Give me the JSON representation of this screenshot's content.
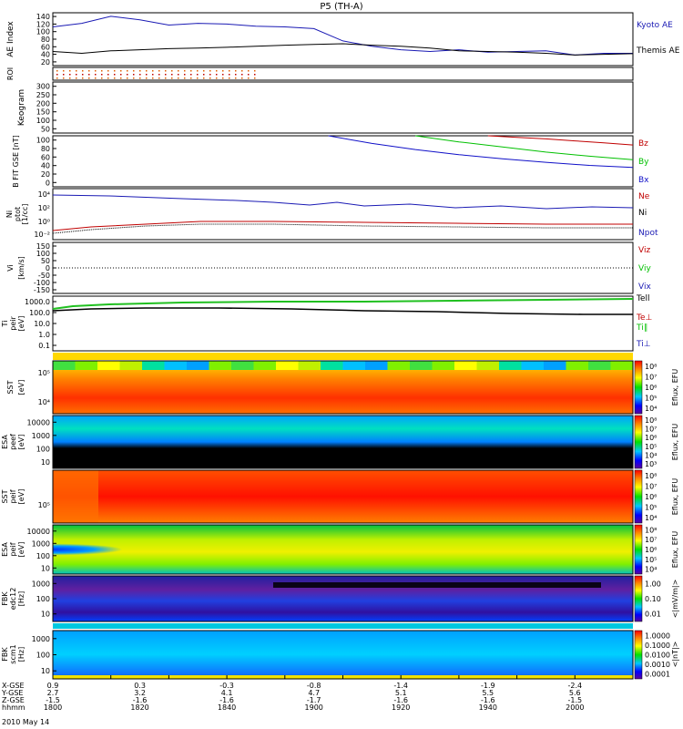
{
  "figure": {
    "title": "P5 (TH-A)",
    "date_label": "2010 May 14"
  },
  "chart_data": [
    {
      "type": "line",
      "panel": "ae",
      "ylabel": "AE Index",
      "ylim": [
        0,
        150
      ],
      "yticks": [
        "20",
        "40",
        "60",
        "80",
        "100",
        "120",
        "140"
      ],
      "xlim": [
        1800,
        2000
      ],
      "x": [
        1800,
        1810,
        1820,
        1830,
        1840,
        1850,
        1860,
        1870,
        1880,
        1890,
        1900,
        1910,
        1920,
        1930,
        1940,
        1950,
        1960,
        1970,
        1980,
        1990,
        2000
      ],
      "series": [
        {
          "name": "Kyoto AE",
          "color": "#1a1ab4",
          "values": [
            110,
            120,
            140,
            130,
            115,
            120,
            118,
            112,
            110,
            105,
            70,
            55,
            45,
            40,
            45,
            38,
            40,
            42,
            30,
            35,
            35
          ]
        },
        {
          "name": "Themis AE",
          "color": "#000000",
          "values": [
            40,
            35,
            42,
            45,
            48,
            50,
            52,
            55,
            58,
            60,
            62,
            58,
            55,
            50,
            42,
            40,
            38,
            35,
            30,
            32,
            34
          ]
        }
      ]
    },
    {
      "type": "scatter",
      "panel": "roi",
      "ylabel": "ROI",
      "note_rows": 3
    },
    {
      "type": "line",
      "panel": "keogram",
      "ylabel": "Keogram",
      "ylim": [
        0,
        300
      ],
      "yticks": [
        "50",
        "100",
        "150",
        "200",
        "250",
        "300"
      ]
    },
    {
      "type": "line",
      "panel": "bfit",
      "ylabel": "B FIT GSE [nT]",
      "ylim": [
        0,
        100
      ],
      "yticks": [
        "0",
        "20",
        "40",
        "60",
        "80",
        "100"
      ],
      "series": [
        {
          "name": "Bz",
          "color": "#c00000",
          "x": [
            1950,
            1960,
            1970,
            1980,
            1990,
            2000
          ],
          "values": [
            100,
            97,
            94,
            90,
            86,
            82
          ]
        },
        {
          "name": "By",
          "color": "#00c000",
          "x": [
            1925,
            1940,
            1955,
            1970,
            1985,
            2000
          ],
          "values": [
            100,
            88,
            78,
            68,
            60,
            53
          ]
        },
        {
          "name": "Bx",
          "color": "#1010c8",
          "x": [
            1895,
            1910,
            1925,
            1940,
            1955,
            1970,
            1985,
            2000
          ],
          "values": [
            100,
            85,
            73,
            63,
            55,
            48,
            42,
            38
          ]
        }
      ]
    },
    {
      "type": "line",
      "panel": "density",
      "ylabel": "Ni",
      "ylabel2": "[1/cc]",
      "ylabel_sub": "ptot",
      "yticks": [
        "10²",
        "10⁰",
        "10⁻²",
        "10⁴"
      ],
      "series_labels": [
        {
          "name": "Ne",
          "color": "#c00000"
        },
        {
          "name": "Ni",
          "color": "#000000"
        },
        {
          "name": "Npot",
          "color": "#1a1ab4"
        }
      ]
    },
    {
      "type": "line",
      "panel": "velocity",
      "ylabel": "Vi",
      "ylabel2": "[km/s]",
      "yticks": [
        "150",
        "100",
        "50",
        "0",
        "-50",
        "-100",
        "-150"
      ],
      "series_labels": [
        {
          "name": "Viz",
          "color": "#c00000"
        },
        {
          "name": "Viy",
          "color": "#00c000"
        },
        {
          "name": "Vix",
          "color": "#1a1ab4"
        }
      ]
    },
    {
      "type": "line",
      "panel": "temperature",
      "ylabel": "Ti",
      "ylabel2": "[eV]",
      "ylabel_sub": "peir",
      "yticks": [
        "1000.0",
        "100.0",
        "10.0",
        "1.0",
        "0.1"
      ],
      "series_labels": [
        {
          "name": "Tell",
          "color": "#000000"
        },
        {
          "name": "Te⊥",
          "color": "#c00000"
        },
        {
          "name": "Ti∥",
          "color": "#00c000"
        },
        {
          "name": "Ti⊥",
          "color": "#1a1ab4"
        }
      ]
    },
    {
      "type": "heatmap",
      "panel": "sst_e",
      "ylabel": "SST",
      "ylabel2": "[eV]",
      "ylabel_sub": "peef",
      "yticks": [
        "10⁵",
        "10⁴"
      ],
      "colorbar_ticks": [
        "10⁸",
        "10⁷",
        "10⁶",
        "10⁵",
        "10⁴"
      ],
      "colorbar_label": "Eflux, EFU"
    },
    {
      "type": "heatmap",
      "panel": "esa_e",
      "ylabel": "ESA",
      "ylabel2": "[eV]",
      "ylabel_sub": "peef",
      "yticks": [
        "10000",
        "1000",
        "100",
        "10"
      ],
      "colorbar_ticks": [
        "10⁸",
        "10⁷",
        "10⁶",
        "10⁵",
        "10⁴",
        "10³"
      ],
      "colorbar_label": "Eflux, EFU"
    },
    {
      "type": "heatmap",
      "panel": "sst_i",
      "ylabel": "SST",
      "ylabel2": "[eV]",
      "ylabel_sub": "peif",
      "yticks": [
        "10⁵"
      ],
      "colorbar_ticks": [
        "10⁸",
        "10⁷",
        "10⁶",
        "10⁵",
        "10⁴"
      ],
      "colorbar_label": "Eflux, EFU"
    },
    {
      "type": "heatmap",
      "panel": "esa_i",
      "ylabel": "ESA",
      "ylabel2": "[eV]",
      "ylabel_sub": "peif",
      "yticks": [
        "10000",
        "1000",
        "100",
        "10"
      ],
      "colorbar_ticks": [
        "10⁸",
        "10⁷",
        "10⁶",
        "10⁵",
        "10⁴"
      ],
      "colorbar_label": "Eflux, EFU"
    },
    {
      "type": "heatmap",
      "panel": "fbk_e",
      "ylabel": "FBK",
      "ylabel2": "[Hz]",
      "ylabel_sub": "edc12",
      "yticks": [
        "1000",
        "100",
        "10"
      ],
      "colorbar_ticks": [
        "1.00",
        "0.10",
        "0.01"
      ],
      "colorbar_label": "<|mV/m|>"
    },
    {
      "type": "heatmap",
      "panel": "fbk_b",
      "ylabel": "FBK",
      "ylabel2": "[Hz]",
      "ylabel_sub": "scm1",
      "yticks": [
        "1000",
        "100",
        "10"
      ],
      "colorbar_ticks": [
        "1.0000",
        "0.1000",
        "0.0100",
        "0.0010",
        "0.0001"
      ],
      "colorbar_label": "<|nT|>"
    }
  ],
  "x_axis": {
    "rows": [
      {
        "label": "X-GSE",
        "values": [
          "0.9",
          "0.3",
          "-0.3",
          "-0.8",
          "-1.4",
          "-1.9",
          "-2.4"
        ]
      },
      {
        "label": "Y-GSE",
        "values": [
          "2.7",
          "3.2",
          "4.1",
          "4.7",
          "5.1",
          "5.5",
          "5.6"
        ]
      },
      {
        "label": "Z-GSE",
        "values": [
          "-1.5",
          "-1.6",
          "-1.6",
          "-1.7",
          "-1.6",
          "-1.6",
          "-1.5"
        ]
      },
      {
        "label": "hhmm",
        "values": [
          "1800",
          "1820",
          "1840",
          "1900",
          "1920",
          "1940",
          "2000"
        ]
      }
    ]
  },
  "palette": {
    "kyoto": "#1a1ab4",
    "red": "#c00000",
    "green": "#00c000",
    "blue": "#1a1ab4",
    "black": "#000000"
  }
}
